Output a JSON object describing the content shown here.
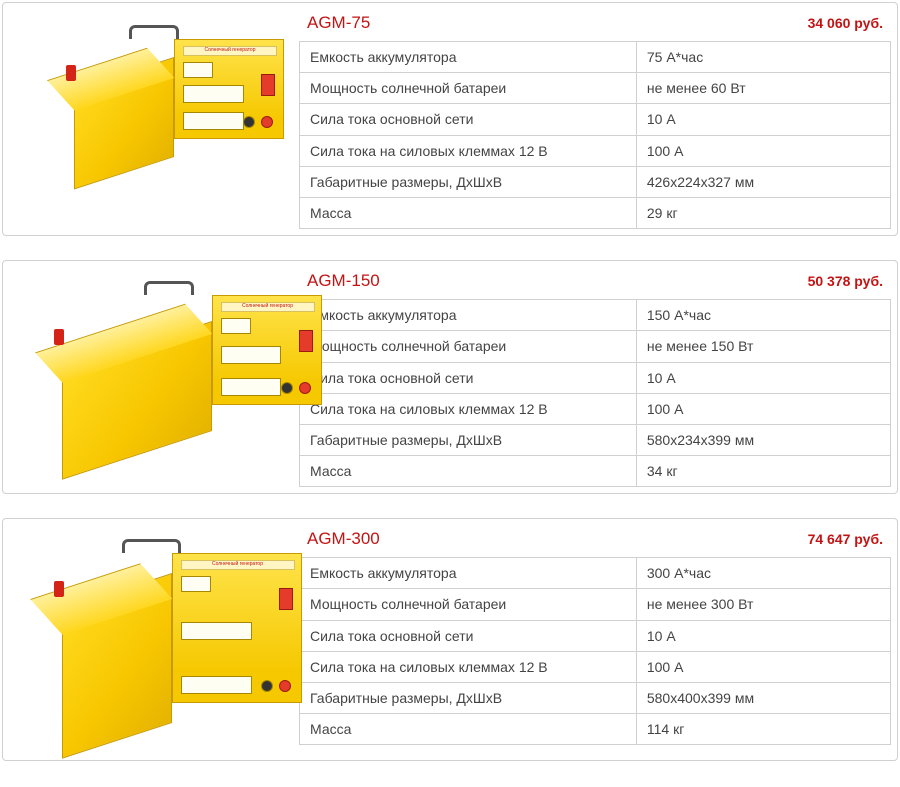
{
  "spec_labels": {
    "capacity": "Емкость аккумулятора",
    "solar_power": "Мощность солнечной батареи",
    "main_current": "Сила тока основной сети",
    "terminal_current": "Сила тока на силовых клеммах 12 В",
    "dimensions": "Габаритные размеры, ДхШхВ",
    "mass": "Масса"
  },
  "products": [
    {
      "title": "AGM-75",
      "price": "34 060 руб.",
      "image_size": "small",
      "specs": {
        "capacity": "75 А*час",
        "solar_power": "не менее 60 Вт",
        "main_current": "10 А",
        "terminal_current": "100 А",
        "dimensions": "426х224х327 мм",
        "mass": "29 кг"
      }
    },
    {
      "title": "AGM-150",
      "price": "50 378 руб.",
      "image_size": "medium",
      "specs": {
        "capacity": "150 А*час",
        "solar_power": "не менее 150 Вт",
        "main_current": "10 А",
        "terminal_current": "100 А",
        "dimensions": "580х234х399 мм",
        "mass": "34 кг"
      }
    },
    {
      "title": "AGM-300",
      "price": "74 647 руб.",
      "image_size": "large",
      "specs": {
        "capacity": "300 А*час",
        "solar_power": "не менее 300 Вт",
        "main_current": "10 А",
        "terminal_current": "100 А",
        "dimensions": "580х400х399 мм",
        "mass": "114 кг"
      }
    }
  ],
  "colors": {
    "accent": "#c31414",
    "border": "#d0d0d0",
    "text": "#444444",
    "device_yellow": "#f7c600"
  }
}
